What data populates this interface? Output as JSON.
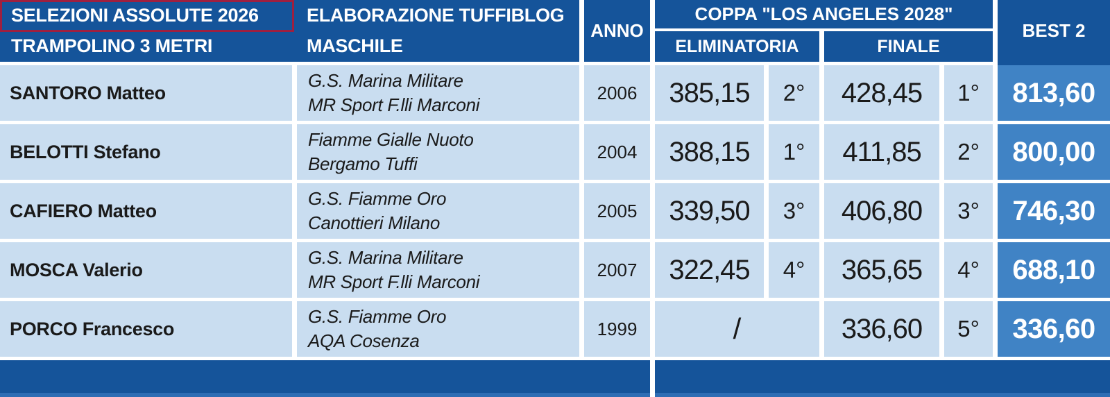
{
  "chart_data": {
    "type": "table",
    "header": {
      "selection": "SELEZIONI ASSOLUTE 2026",
      "event": "TRAMPOLINO 3 METRI",
      "elaboration": "ELABORAZIONE TUFFIBLOG",
      "category": "MASCHILE",
      "col_year": "ANNO",
      "col_competition": "COPPA \"LOS ANGELES 2028\"",
      "col_prelim": "ELIMINATORIA",
      "col_final": "FINALE",
      "col_best2": "BEST 2"
    },
    "rows": [
      {
        "name": "SANTORO Matteo",
        "club1": "G.S. Marina Militare",
        "club2": "MR Sport F.lli Marconi",
        "anno": "2006",
        "elim_score": "385,15",
        "elim_place": "2°",
        "finale_score": "428,45",
        "finale_place": "1°",
        "best2": "813,60"
      },
      {
        "name": "BELOTTI Stefano",
        "club1": "Fiamme Gialle Nuoto",
        "club2": "Bergamo Tuffi",
        "anno": "2004",
        "elim_score": "388,15",
        "elim_place": "1°",
        "finale_score": "411,85",
        "finale_place": "2°",
        "best2": "800,00"
      },
      {
        "name": "CAFIERO Matteo",
        "club1": "G.S. Fiamme Oro",
        "club2": "Canottieri Milano",
        "anno": "2005",
        "elim_score": "339,50",
        "elim_place": "3°",
        "finale_score": "406,80",
        "finale_place": "3°",
        "best2": "746,30"
      },
      {
        "name": "MOSCA Valerio",
        "club1": "G.S. Marina Militare",
        "club2": "MR Sport F.lli Marconi",
        "anno": "2007",
        "elim_score": "322,45",
        "elim_place": "4°",
        "finale_score": "365,65",
        "finale_place": "4°",
        "best2": "688,10"
      },
      {
        "name": "PORCO Francesco",
        "club1": "G.S. Fiamme Oro",
        "club2": "AQA Cosenza",
        "anno": "1999",
        "elim_merged": "/",
        "finale_score": "336,60",
        "finale_place": "5°",
        "best2": "336,60"
      }
    ]
  },
  "colors": {
    "header_blue": "#15549a",
    "row_light_blue": "#c9ddf0",
    "best2_blue": "#4083c5",
    "accent_red_box": "#9e2040",
    "bottom_strip_blue": "#2e6db4",
    "text_dark": "#1a1a1a",
    "text_white": "#ffffff"
  }
}
